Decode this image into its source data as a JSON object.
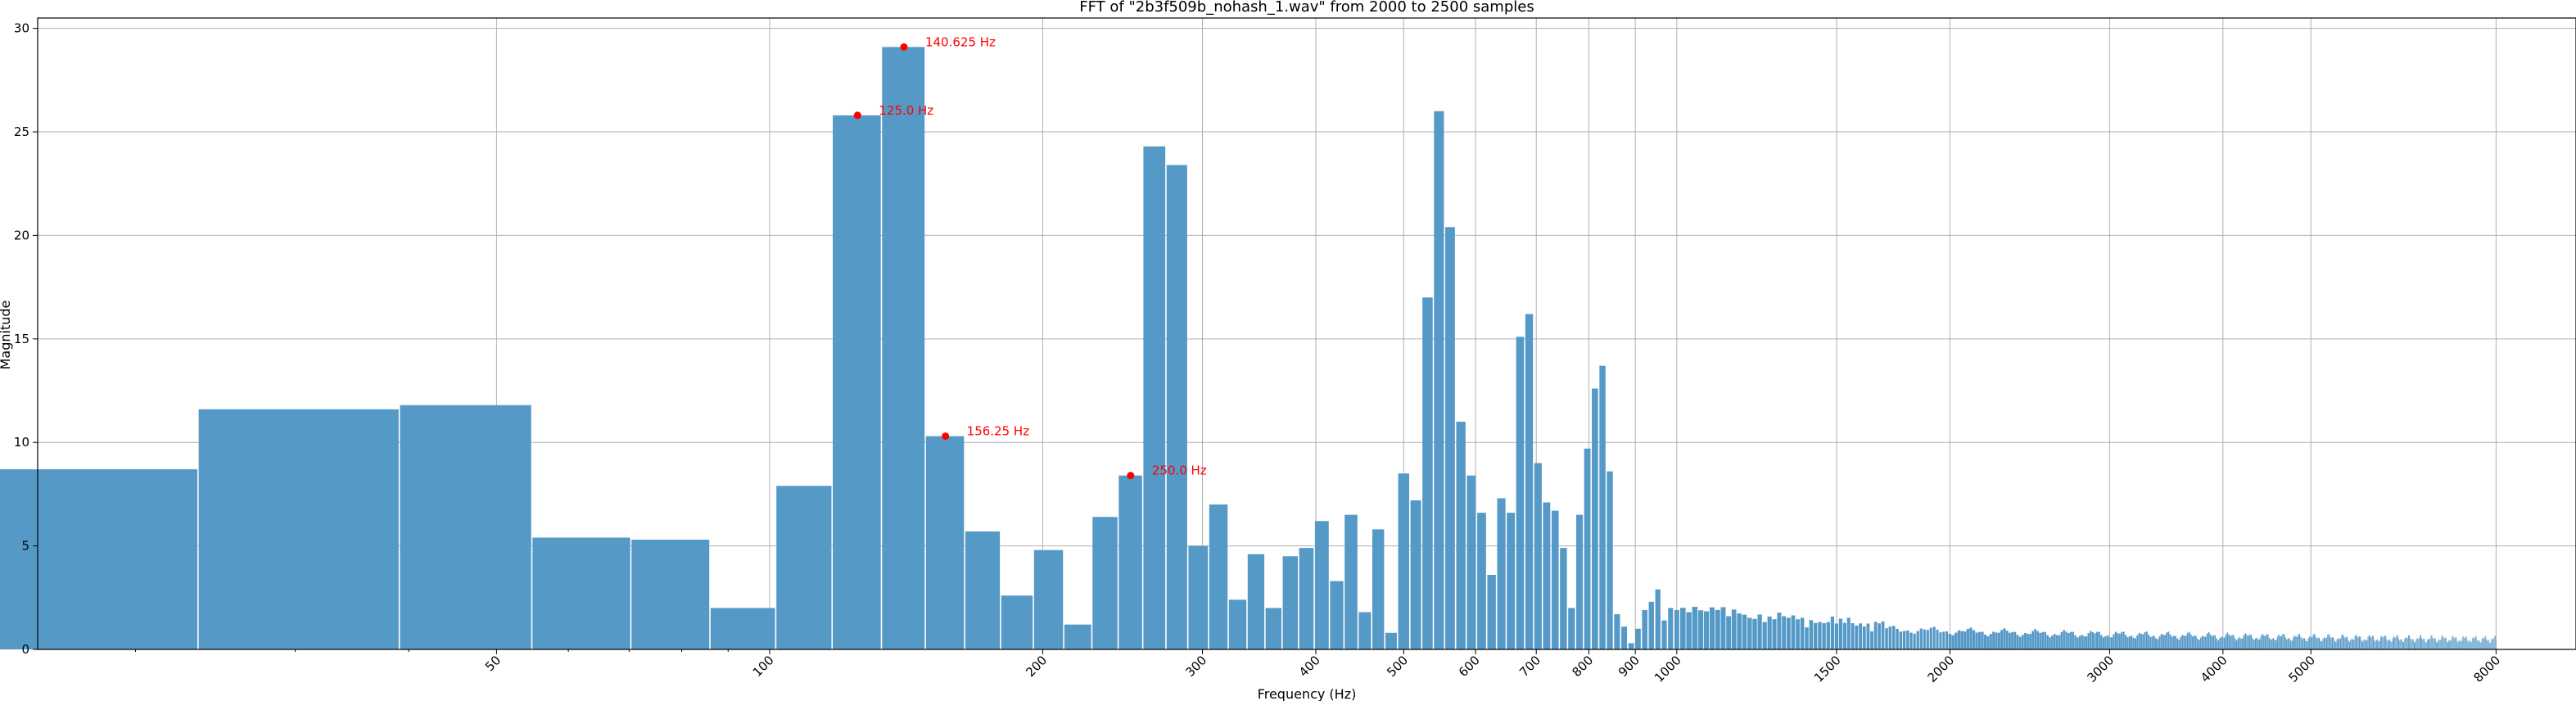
{
  "chart_data": {
    "type": "bar",
    "title": "FFT of \"2b3f509b_nohash_1.wav\" from 2000 to 2500 samples",
    "xlabel": "Frequency (Hz)",
    "ylabel": "Magnitude",
    "x_scale": "log",
    "xlim": [
      15.6,
      9800
    ],
    "ylim": [
      0,
      30.5
    ],
    "grid": true,
    "bin_width_hz": 15.625,
    "bar_color": "#5599c7",
    "annotation_color": "#ff0000",
    "x_ticks": [
      50,
      100,
      200,
      300,
      400,
      500,
      600,
      700,
      800,
      900,
      1000,
      1500,
      2000,
      3000,
      4000,
      5000,
      8000
    ],
    "x_tick_labels": [
      "50",
      "100",
      "200",
      "300",
      "400",
      "500",
      "600",
      "700",
      "800",
      "900",
      "1000",
      "1500",
      "2000",
      "3000",
      "4000",
      "5000",
      "8000"
    ],
    "y_ticks": [
      0,
      5,
      10,
      15,
      20,
      25,
      30
    ],
    "y_tick_labels": [
      "0",
      "5",
      "10",
      "15",
      "20",
      "25",
      "30"
    ],
    "x": [
      15.625,
      31.25,
      46.875,
      62.5,
      78.125,
      93.75,
      109.375,
      125.0,
      140.625,
      156.25,
      171.875,
      187.5,
      203.125,
      218.75,
      234.375,
      250.0,
      265.625,
      281.25,
      296.875,
      312.5,
      328.125,
      343.75,
      359.375,
      375.0,
      390.625,
      406.25,
      421.875,
      437.5,
      453.125,
      468.75,
      484.375,
      500.0,
      515.625,
      531.25,
      546.875,
      562.5,
      578.125,
      593.75,
      609.375,
      625.0,
      640.625,
      656.25,
      671.875,
      687.5,
      703.125,
      718.75,
      734.375,
      750.0,
      765.625,
      781.25,
      796.875,
      812.5,
      828.125,
      843.75,
      859.375,
      875.0,
      890.625,
      906.25,
      921.875,
      937.5,
      953.125,
      968.75,
      984.375,
      1000.0
    ],
    "values": [
      8.7,
      11.6,
      11.8,
      5.4,
      5.3,
      2.0,
      7.9,
      25.8,
      29.1,
      10.3,
      5.7,
      2.6,
      4.8,
      1.2,
      6.4,
      8.4,
      24.3,
      23.4,
      5.0,
      7.0,
      2.4,
      4.6,
      2.0,
      4.5,
      4.9,
      6.2,
      3.3,
      6.5,
      1.8,
      5.8,
      0.8,
      8.5,
      7.2,
      17.0,
      26.0,
      20.4,
      11.0,
      8.4,
      6.6,
      3.6,
      7.3,
      6.6,
      15.1,
      16.2,
      9.0,
      7.1,
      6.7,
      4.9,
      2.0,
      6.5,
      9.7,
      12.6,
      13.7,
      8.6,
      1.7,
      1.1,
      0.3,
      1.0,
      1.9,
      2.3,
      2.9,
      1.4,
      2.0,
      1.9
    ],
    "tail_start_hz": 1015.625,
    "tail_end_hz": 8000,
    "annotations": [
      {
        "x": 125.0,
        "y": 25.8,
        "label": "125.0 Hz"
      },
      {
        "x": 140.625,
        "y": 29.1,
        "label": "140.625 Hz"
      },
      {
        "x": 156.25,
        "y": 10.3,
        "label": "156.25 Hz"
      },
      {
        "x": 250.0,
        "y": 8.4,
        "label": "250.0 Hz"
      }
    ]
  }
}
